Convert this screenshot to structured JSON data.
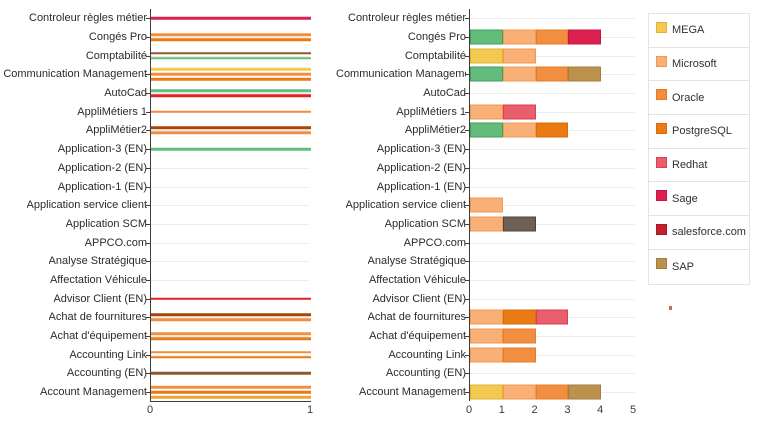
{
  "palette": {
    "mega_yellow": {
      "hex": "#F3CA4F",
      "border": "#DFB239"
    },
    "microsoft_lightorange": {
      "hex": "#F8B076",
      "border": "#F09A50"
    },
    "oracle_orange": {
      "hex": "#F28E3F",
      "border": "#E37C25"
    },
    "postgresql_darkorange": {
      "hex": "#EA7A14",
      "border": "#D66C0B"
    },
    "redhat_pink": {
      "hex": "#E85E6C",
      "border": "#DB3F53"
    },
    "sage_crimson": {
      "hex": "#DC2151",
      "border": "#C41543"
    },
    "salesforce_darkred": {
      "hex": "#C2202D",
      "border": "#A81824"
    },
    "sap_tan": {
      "hex": "#BB914E",
      "border": "#A67E3C"
    },
    "green": {
      "hex": "#63BC7C",
      "border": "#3F9E60"
    },
    "darkgray": {
      "hex": "#6E6056",
      "border": "#50453D"
    },
    "red": {
      "hex": "#E32226",
      "border": "#C81B1F"
    },
    "brown": {
      "hex": "#8B5B2B",
      "border": "#7A4E22"
    },
    "rust": {
      "hex": "#A84309",
      "border": "#933A06"
    },
    "amber": {
      "hex": "#EBA63B",
      "border": "#D89427"
    }
  },
  "legend": {
    "items": [
      {
        "label": "MEGA",
        "color": "mega_yellow"
      },
      {
        "label": "Microsoft",
        "color": "microsoft_lightorange"
      },
      {
        "label": "Oracle",
        "color": "oracle_orange"
      },
      {
        "label": "PostgreSQL",
        "color": "postgresql_darkorange"
      },
      {
        "label": "Redhat",
        "color": "redhat_pink"
      },
      {
        "label": "Sage",
        "color": "sage_crimson"
      },
      {
        "label": "salesforce.com",
        "color": "salesforce_darkred"
      },
      {
        "label": "SAP",
        "color": "sap_tan"
      }
    ]
  },
  "chart_data": [
    {
      "type": "bar",
      "variant": "thin-multiple",
      "orientation": "horizontal",
      "title": "",
      "xlabel": "",
      "ylabel": "",
      "xlim": [
        0,
        1
      ],
      "x_ticks": [
        "0",
        "1"
      ],
      "bar_unit_value": 1,
      "grid": true,
      "rows": [
        {
          "label": "Controleur règles métier",
          "bars": [
            "sage_crimson"
          ]
        },
        {
          "label": "Congés Pro",
          "bars": [
            "oracle_orange",
            "postgresql_darkorange"
          ]
        },
        {
          "label": "Comptabilité",
          "bars": [
            "brown",
            "green"
          ]
        },
        {
          "label": "Communication Management",
          "bars": [
            "mega_yellow",
            "oracle_orange",
            "postgresql_darkorange"
          ]
        },
        {
          "label": "AutoCad",
          "bars": [
            "green",
            "red"
          ]
        },
        {
          "label": "AppliMétiers 1",
          "bars": [
            "oracle_orange"
          ]
        },
        {
          "label": "AppliMétier2",
          "bars": [
            "rust",
            "oracle_orange"
          ]
        },
        {
          "label": "Application-3 (EN)",
          "bars": [
            "green"
          ]
        },
        {
          "label": "Application-2 (EN)",
          "bars": []
        },
        {
          "label": "Application-1 (EN)",
          "bars": []
        },
        {
          "label": "Application service client",
          "bars": []
        },
        {
          "label": "Application SCM",
          "bars": []
        },
        {
          "label": "APPCO.com",
          "bars": []
        },
        {
          "label": "Analyse Stratégique",
          "bars": []
        },
        {
          "label": "Affectation Véhicule",
          "bars": []
        },
        {
          "label": "Advisor Client (EN)",
          "bars": [
            "red"
          ]
        },
        {
          "label": "Achat de fournitures",
          "bars": [
            "rust",
            "oracle_orange"
          ]
        },
        {
          "label": "Achat d'équipement",
          "bars": [
            "oracle_orange",
            "postgresql_darkorange"
          ]
        },
        {
          "label": "Accounting Link",
          "bars": [
            "oracle_orange",
            "postgresql_darkorange"
          ]
        },
        {
          "label": "Accounting (EN)",
          "bars": [
            "brown"
          ]
        },
        {
          "label": "Account Management",
          "bars": [
            "oracle_orange",
            "postgresql_darkorange",
            "amber"
          ]
        }
      ]
    },
    {
      "type": "bar",
      "variant": "stacked",
      "orientation": "horizontal",
      "title": "",
      "xlabel": "",
      "ylabel": "",
      "xlim": [
        0,
        5
      ],
      "x_ticks": [
        "0",
        "1",
        "2",
        "3",
        "4",
        "5"
      ],
      "segment_unit_value": 1,
      "grid": true,
      "rows": [
        {
          "label": "Controleur règles métier",
          "segments": []
        },
        {
          "label": "Congés Pro",
          "segments": [
            "green",
            "microsoft_lightorange",
            "oracle_orange",
            "sage_crimson"
          ]
        },
        {
          "label": "Comptabilité",
          "segments": [
            "mega_yellow",
            "microsoft_lightorange"
          ]
        },
        {
          "label": "Communication Management",
          "segments": [
            "green",
            "microsoft_lightorange",
            "oracle_orange",
            "sap_tan"
          ]
        },
        {
          "label": "AutoCad",
          "segments": []
        },
        {
          "label": "AppliMétiers 1",
          "segments": [
            "microsoft_lightorange",
            "redhat_pink"
          ]
        },
        {
          "label": "AppliMétier2",
          "segments": [
            "green",
            "microsoft_lightorange",
            "postgresql_darkorange"
          ]
        },
        {
          "label": "Application-3 (EN)",
          "segments": []
        },
        {
          "label": "Application-2 (EN)",
          "segments": []
        },
        {
          "label": "Application-1 (EN)",
          "segments": []
        },
        {
          "label": "Application service client",
          "segments": [
            "microsoft_lightorange"
          ]
        },
        {
          "label": "Application SCM",
          "segments": [
            "microsoft_lightorange",
            "darkgray"
          ]
        },
        {
          "label": "APPCO.com",
          "segments": []
        },
        {
          "label": "Analyse Stratégique",
          "segments": []
        },
        {
          "label": "Affectation Véhicule",
          "segments": []
        },
        {
          "label": "Advisor Client (EN)",
          "segments": []
        },
        {
          "label": "Achat de fournitures",
          "segments": [
            "microsoft_lightorange",
            "postgresql_darkorange",
            "redhat_pink"
          ]
        },
        {
          "label": "Achat d'équipement",
          "segments": [
            "microsoft_lightorange",
            "oracle_orange"
          ]
        },
        {
          "label": "Accounting Link",
          "segments": [
            "microsoft_lightorange",
            "oracle_orange"
          ]
        },
        {
          "label": "Accounting (EN)",
          "segments": []
        },
        {
          "label": "Account Management",
          "segments": [
            "mega_yellow",
            "microsoft_lightorange",
            "oracle_orange",
            "sap_tan"
          ]
        }
      ]
    }
  ]
}
